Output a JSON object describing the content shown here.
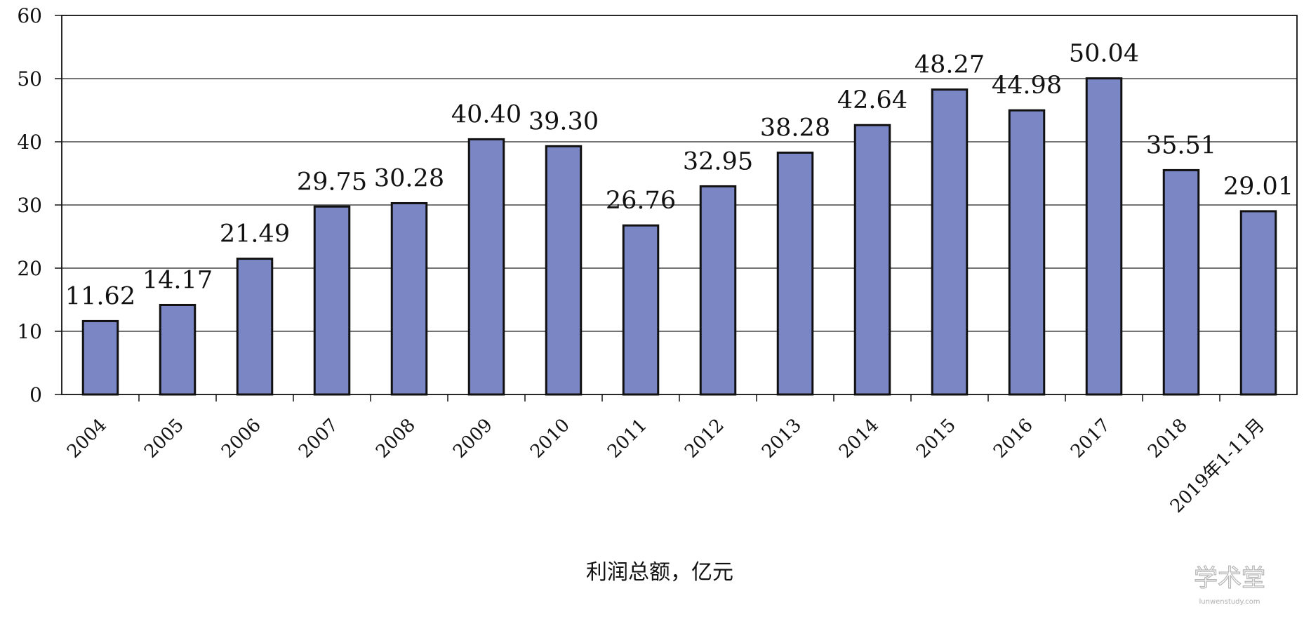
{
  "chart_data": {
    "type": "bar",
    "categories": [
      "2004",
      "2005",
      "2006",
      "2007",
      "2008",
      "2009",
      "2010",
      "2011",
      "2012",
      "2013",
      "2014",
      "2015",
      "2016",
      "2017",
      "2018",
      "2019年1-11月"
    ],
    "values": [
      11.62,
      14.17,
      21.49,
      29.75,
      30.28,
      40.4,
      39.3,
      26.76,
      32.95,
      38.28,
      42.64,
      48.27,
      44.98,
      50.04,
      35.51,
      29.01
    ],
    "data_labels": [
      "11.62",
      "14.17",
      "21.49",
      "29.75",
      "30.28",
      "40.40",
      "39.30",
      "26.76",
      "32.95",
      "38.28",
      "42.64",
      "48.27",
      "44.98",
      "50.04",
      "35.51",
      "29.01"
    ],
    "title": "",
    "xlabel": "利润总额，亿元",
    "ylabel": "",
    "ylim": [
      0,
      60
    ],
    "yticks": [
      "0",
      "10",
      "20",
      "30",
      "40",
      "50",
      "60"
    ],
    "grid": true,
    "legend": "none",
    "bar_color": "#7b86c4",
    "bar_edge_color": "#111111"
  },
  "watermark": {
    "main": "学术堂",
    "sub": "lunwenstudy.com"
  }
}
